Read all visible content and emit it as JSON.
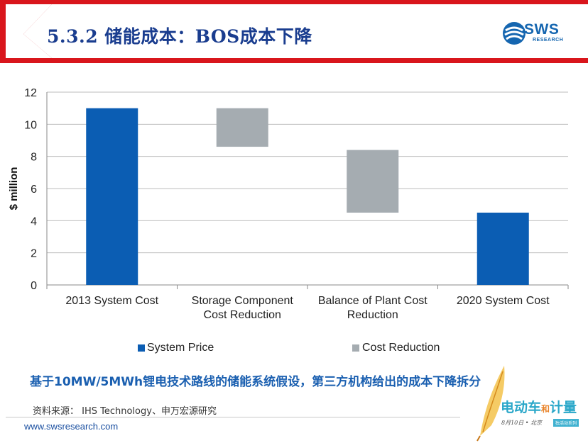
{
  "header": {
    "title": "5.3.2 储能成本：BOS成本下降"
  },
  "logo": {
    "name": "SWS",
    "sub": "RESEARCH"
  },
  "chart_data": {
    "type": "bar",
    "subtype": "waterfall",
    "categories": [
      [
        "2013 System Cost"
      ],
      [
        "Storage Component",
        "Cost Reduction"
      ],
      [
        "Balance of Plant Cost",
        "Reduction"
      ],
      [
        "2020 System Cost"
      ]
    ],
    "bars": [
      {
        "series": "System Price",
        "bottom": 0,
        "top": 11.0
      },
      {
        "series": "Cost Reduction",
        "bottom": 8.6,
        "top": 11.0
      },
      {
        "series": "Cost Reduction",
        "bottom": 4.5,
        "top": 8.4
      },
      {
        "series": "System Price",
        "bottom": 0,
        "top": 4.5
      }
    ],
    "series": [
      {
        "name": "System Price",
        "color": "#0b5db3"
      },
      {
        "name": "Cost Reduction",
        "color": "#a5acb1"
      }
    ],
    "ylabel": "$ million",
    "ylim": [
      0,
      12
    ],
    "yticks": [
      "0",
      "2",
      "4",
      "6",
      "8",
      "10",
      "12"
    ],
    "grid": true,
    "legend": "bottom"
  },
  "note": "基于10MW/5MWh锂电技术路线的储能系统假设，第三方机构给出的成本下降拆分",
  "source": "资料来源： IHS Technology、申万宏源研究",
  "footer": {
    "url": "www.swsresearch.com"
  },
  "watermark": {
    "title_a": "电动车",
    "title_he": "和",
    "title_b": "计量",
    "date": "8月10日 • 北京",
    "tag": "独活动系列"
  }
}
